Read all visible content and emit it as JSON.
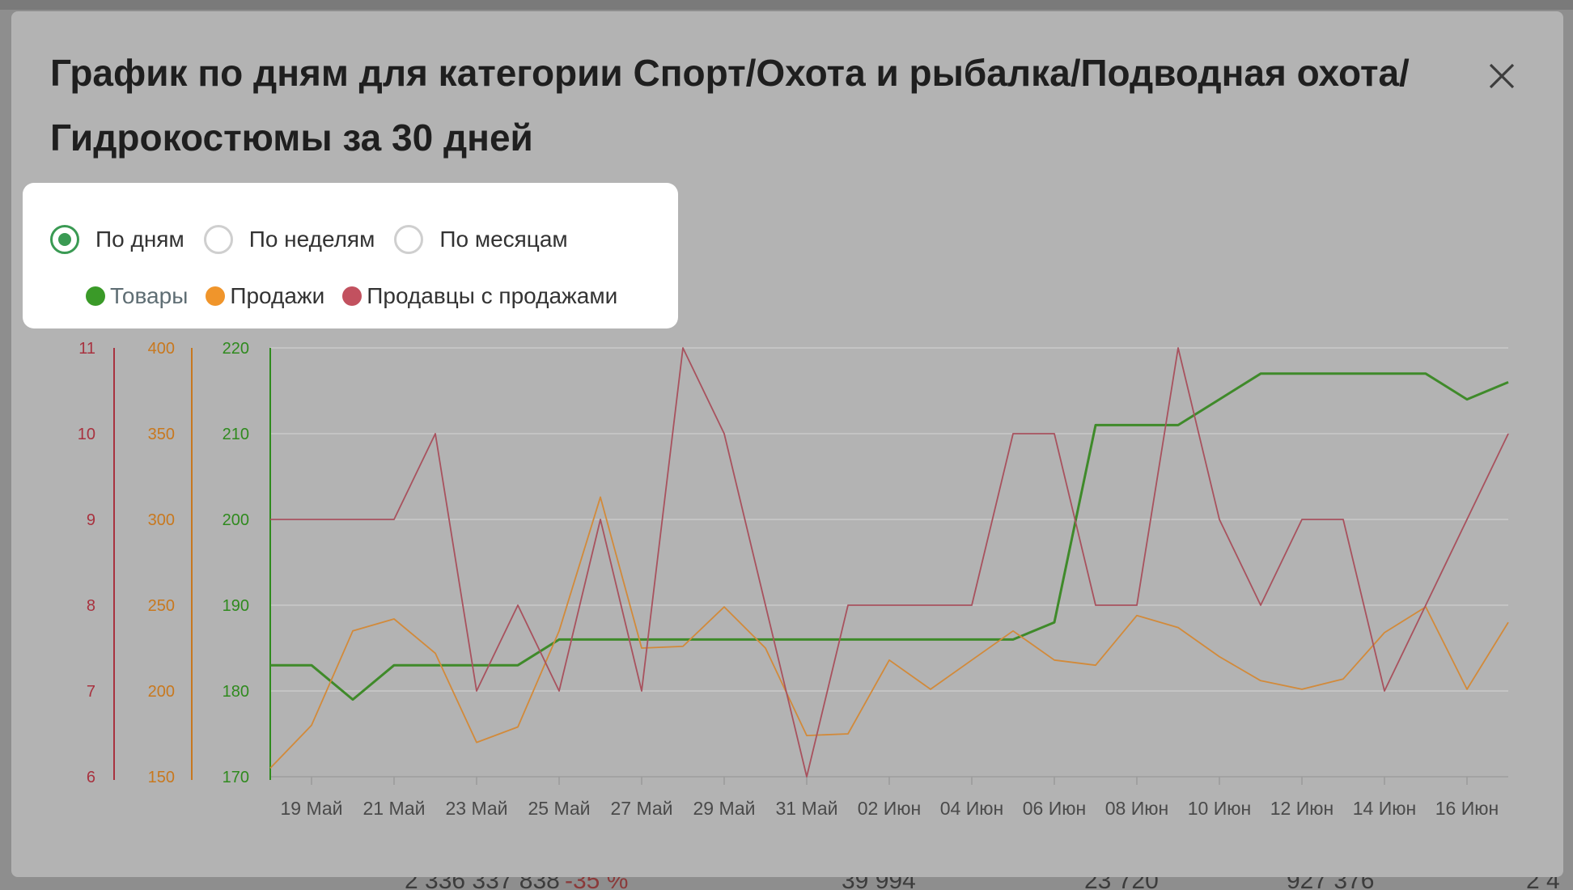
{
  "modal": {
    "title": "График по дням для категории Спорт/Охота и рыбалка/Подводная охота/ Гидрокостюмы за 30 дней",
    "close_icon": "close-icon"
  },
  "period_options": [
    {
      "label": "По дням",
      "selected": true
    },
    {
      "label": "По неделям",
      "selected": false
    },
    {
      "label": "По месяцам",
      "selected": false
    }
  ],
  "legend": [
    {
      "label": "Товары",
      "color": "#3a9a28"
    },
    {
      "label": "Продажи",
      "color": "#f0952b"
    },
    {
      "label": "Продавцы с продажами",
      "color": "#c2515f"
    }
  ],
  "background": {
    "bottom_values": [
      "2 336 337 838",
      "-35 %",
      "39 994",
      "23 720",
      "927 376",
      "2 4"
    ]
  },
  "chart_data": {
    "type": "line",
    "x_tick_labels": [
      "19 Май",
      "21 Май",
      "23 Май",
      "25 Май",
      "27 Май",
      "29 Май",
      "31 Май",
      "02 Июн",
      "04 Июн",
      "06 Июн",
      "08 Июн",
      "10 Июн",
      "12 Июн",
      "14 Июн",
      "16 Июн"
    ],
    "x": [
      "18 Май",
      "19 Май",
      "20 Май",
      "21 Май",
      "22 Май",
      "23 Май",
      "24 Май",
      "25 Май",
      "26 Май",
      "27 Май",
      "28 Май",
      "29 Май",
      "30 Май",
      "31 Май",
      "01 Июн",
      "02 Июн",
      "03 Июн",
      "04 Июн",
      "05 Июн",
      "06 Июн",
      "07 Июн",
      "08 Июн",
      "09 Июн",
      "10 Июн",
      "11 Июн",
      "12 Июн",
      "13 Июн",
      "14 Июн",
      "15 Июн",
      "16 Июн",
      "17 Июн"
    ],
    "axes": [
      {
        "series": "Продавцы с продажами",
        "ticks": [
          6,
          7,
          8,
          9,
          10,
          11
        ],
        "ylim": [
          6,
          11
        ],
        "color": "#a8323f"
      },
      {
        "series": "Продажи",
        "ticks": [
          150,
          200,
          250,
          300,
          350,
          400
        ],
        "ylim": [
          150,
          400
        ],
        "color": "#c8781e"
      },
      {
        "series": "Товары",
        "ticks": [
          170,
          180,
          190,
          200,
          210,
          220
        ],
        "ylim": [
          170,
          220
        ],
        "color": "#2f8a1e"
      }
    ],
    "series": [
      {
        "name": "Товары",
        "color": "#3f8a2a",
        "values": [
          183,
          183,
          179,
          183,
          183,
          183,
          183,
          186,
          186,
          186,
          186,
          186,
          186,
          186,
          186,
          186,
          186,
          186,
          186,
          188,
          211,
          211,
          211,
          214,
          217,
          217,
          217,
          217,
          217,
          214,
          216
        ]
      },
      {
        "name": "Продажи",
        "color": "#d28a3a",
        "values": [
          155,
          180,
          235,
          242,
          222,
          170,
          179,
          235,
          313,
          225,
          226,
          249,
          225,
          174,
          175,
          218,
          201,
          218,
          235,
          218,
          215,
          244,
          237,
          220,
          206,
          201,
          207,
          234,
          249,
          201,
          240
        ]
      },
      {
        "name": "Продавцы с продажами",
        "color": "#a8525e",
        "values": [
          9,
          9,
          9,
          9,
          10,
          7,
          8,
          7,
          9,
          7,
          11,
          10,
          8,
          6,
          8,
          8,
          8,
          8,
          10,
          10,
          8,
          8,
          11,
          9,
          8,
          9,
          9,
          7,
          8,
          9,
          10
        ]
      }
    ],
    "grid": true
  }
}
